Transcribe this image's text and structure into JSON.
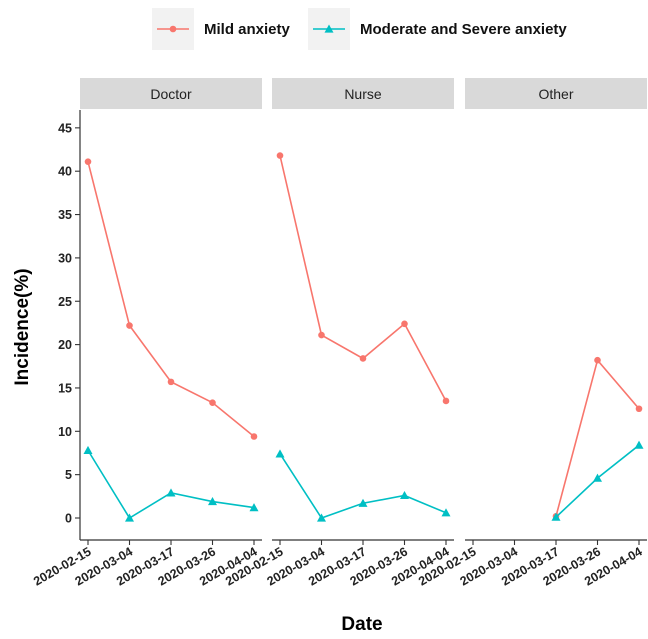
{
  "chart_data": {
    "type": "line",
    "xlabel": "Date",
    "ylabel": "Incidence(%)",
    "ylim": [
      -2,
      47
    ],
    "y_ticks": [
      0,
      5,
      10,
      15,
      20,
      25,
      30,
      35,
      40,
      45
    ],
    "categories": [
      "2020-02-15",
      "2020-03-04",
      "2020-03-17",
      "2020-03-26",
      "2020-04-04"
    ],
    "grid": false,
    "legend_position": "top",
    "legend": [
      {
        "name": "Mild anxiety",
        "color": "#F8766D",
        "marker": "circle"
      },
      {
        "name": "Moderate and Severe anxiety",
        "color": "#00BFC4",
        "marker": "triangle"
      }
    ],
    "panels": [
      {
        "strip": "Doctor",
        "series": [
          {
            "name": "Mild anxiety",
            "values": [
              41.1,
              22.2,
              15.7,
              13.3,
              9.4
            ]
          },
          {
            "name": "Moderate and Severe anxiety",
            "values": [
              7.8,
              0.0,
              2.9,
              1.9,
              1.2
            ]
          }
        ]
      },
      {
        "strip": "Nurse",
        "series": [
          {
            "name": "Mild anxiety",
            "values": [
              41.8,
              21.1,
              18.4,
              22.4,
              13.5
            ]
          },
          {
            "name": "Moderate and Severe anxiety",
            "values": [
              7.4,
              0.0,
              1.7,
              2.6,
              0.6
            ]
          }
        ]
      },
      {
        "strip": "Other",
        "series": [
          {
            "name": "Mild anxiety",
            "values": [
              null,
              null,
              0.2,
              18.2,
              12.6
            ]
          },
          {
            "name": "Moderate and Severe anxiety",
            "values": [
              null,
              null,
              0.1,
              4.6,
              8.4
            ]
          }
        ]
      }
    ]
  }
}
